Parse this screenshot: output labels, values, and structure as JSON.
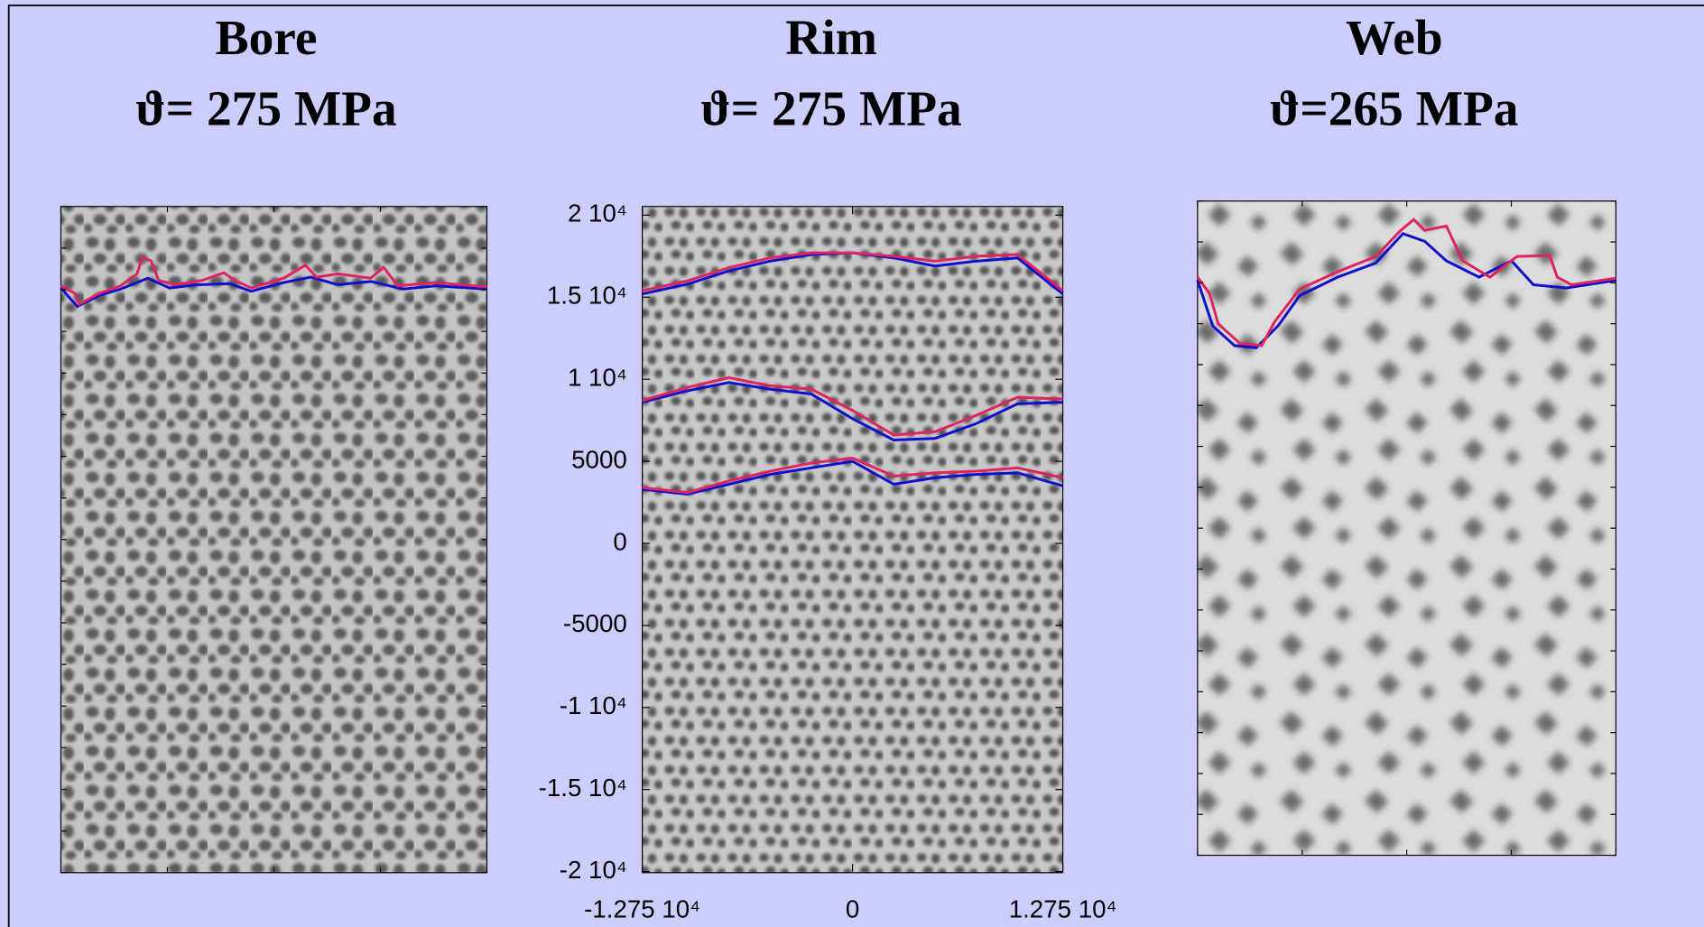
{
  "chart_data": [
    {
      "type": "image",
      "title": "Bore",
      "subtitle": "ϑ= 275 MPa"
    },
    {
      "type": "line",
      "title": "Rim",
      "subtitle": "ϑ= 275 MPa",
      "x": [
        -12750,
        -10000,
        -7500,
        -5000,
        -2500,
        0,
        2500,
        5000,
        7500,
        10000,
        12750
      ],
      "series": [
        {
          "color": "#1010cc",
          "values": [
            15200,
            15800,
            16600,
            17200,
            17600,
            17700,
            17400,
            16900,
            17200,
            17400,
            15200
          ]
        },
        {
          "color": "#e0245e",
          "values": [
            15400,
            16000,
            16800,
            17400,
            17700,
            17700,
            17500,
            17200,
            17500,
            17600,
            15400
          ]
        },
        {
          "color": "#1010cc",
          "values": [
            8600,
            9300,
            9800,
            9400,
            9100,
            7600,
            6300,
            6400,
            7300,
            8500,
            8600
          ]
        },
        {
          "color": "#e0245e",
          "values": [
            8700,
            9500,
            10100,
            9600,
            9400,
            8100,
            6600,
            6800,
            7800,
            8900,
            8800
          ]
        },
        {
          "color": "#1010cc",
          "values": [
            3300,
            3000,
            3600,
            4200,
            4600,
            5000,
            3600,
            4000,
            4200,
            4300,
            3500
          ]
        },
        {
          "color": "#e0245e",
          "values": [
            3400,
            3100,
            3800,
            4400,
            4900,
            5200,
            4100,
            4300,
            4400,
            4600,
            4000
          ]
        }
      ],
      "xlim": [
        -12750,
        12750
      ],
      "xticks": [
        {
          "value": -12750,
          "label": "-1.275 10⁴"
        },
        0,
        {
          "value": 12750,
          "label": "1.275 10⁴"
        }
      ],
      "ylim": [
        -20000,
        20000
      ],
      "yticks": [
        {
          "value": -20000,
          "label": "-2 10⁴"
        },
        {
          "value": -15000,
          "label": "-1.5 10⁴"
        },
        {
          "value": -10000,
          "label": "-1 10⁴"
        },
        -5000,
        0,
        5000,
        {
          "value": 10000,
          "label": "1 10⁴"
        },
        {
          "value": 15000,
          "label": "1.5 10⁴"
        },
        {
          "value": 20000,
          "label": "2 10⁴"
        }
      ]
    },
    {
      "type": "image",
      "title": "Web",
      "subtitle": "ϑ=265 MPa"
    }
  ]
}
